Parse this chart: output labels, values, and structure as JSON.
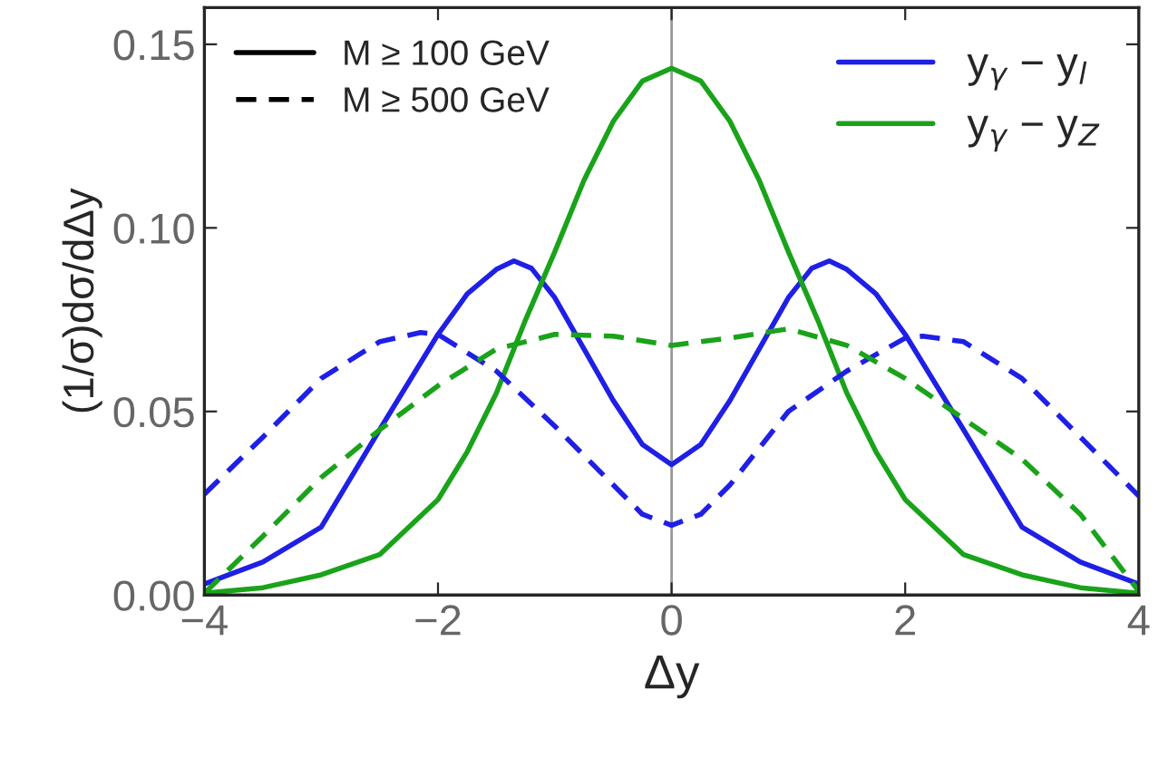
{
  "chart_data": {
    "type": "line",
    "xlabel": "Δy",
    "ylabel": "(1/σ)dσ/dΔy",
    "annotations": [
      "M ≥ 100 GeV",
      "M ≥ 500 GeV"
    ],
    "xlim": [
      -4,
      4
    ],
    "ylim": [
      0,
      0.16
    ],
    "xticks": [
      {
        "value": -4,
        "label": "−4"
      },
      {
        "value": -2,
        "label": "−2"
      },
      0,
      2,
      4
    ],
    "yticks": [
      {
        "value": 0,
        "label": "0.00"
      },
      {
        "value": 0.05,
        "label": "0.05"
      },
      {
        "value": 0.1,
        "label": "0.10"
      },
      {
        "value": 0.15,
        "label": "0.15"
      }
    ],
    "grid": false,
    "legend": "top right",
    "marker": "none",
    "ref_lines": [
      {
        "axis": "x",
        "value": 0,
        "color": "#999999"
      }
    ],
    "series": [
      {
        "name": "y$_{γ}$ − y$_{l}$",
        "color": "#1f1fe6",
        "line_style": "solid",
        "x": [
          -4,
          -3.5,
          -3,
          -2.5,
          -2,
          -1.75,
          -1.5,
          -1.35,
          -1.2,
          -1,
          -0.75,
          -0.5,
          -0.25,
          0,
          0.25,
          0.5,
          0.75,
          1,
          1.2,
          1.35,
          1.5,
          1.75,
          2,
          2.5,
          3,
          3.5,
          4
        ],
        "values": [
          0.003,
          0.009,
          0.0185,
          0.045,
          0.071,
          0.082,
          0.0887,
          0.091,
          0.089,
          0.081,
          0.067,
          0.053,
          0.041,
          0.0355,
          0.041,
          0.053,
          0.067,
          0.081,
          0.089,
          0.091,
          0.0887,
          0.082,
          0.071,
          0.045,
          0.0185,
          0.009,
          0.003
        ]
      },
      {
        "name": "y$_{γ}$ − y$_{Z}$",
        "color": "#1aa31a",
        "line_style": "solid",
        "x": [
          -4,
          -3.5,
          -3,
          -2.5,
          -2,
          -1.75,
          -1.5,
          -1.25,
          -1,
          -0.75,
          -0.5,
          -0.25,
          0,
          0.25,
          0.5,
          0.75,
          1,
          1.25,
          1.5,
          1.75,
          2,
          2.5,
          3,
          3.5,
          4
        ],
        "values": [
          0.0005,
          0.002,
          0.0055,
          0.011,
          0.026,
          0.039,
          0.055,
          0.075,
          0.0935,
          0.113,
          0.129,
          0.14,
          0.1435,
          0.14,
          0.129,
          0.113,
          0.0935,
          0.075,
          0.055,
          0.039,
          0.026,
          0.011,
          0.0055,
          0.002,
          0.0005
        ]
      },
      {
        "color": "#1f1fe6",
        "line_style": "dashed",
        "x": [
          -4,
          -3.5,
          -3,
          -2.5,
          -2.15,
          -2,
          -1.5,
          -1,
          -0.5,
          -0.25,
          0,
          0.25,
          0.5,
          1,
          1.5,
          2,
          2.15,
          2.5,
          3,
          3.5,
          4
        ],
        "values": [
          0.0275,
          0.043,
          0.059,
          0.069,
          0.0715,
          0.071,
          0.061,
          0.046,
          0.03,
          0.022,
          0.019,
          0.022,
          0.03,
          0.05,
          0.061,
          0.07,
          0.0705,
          0.069,
          0.059,
          0.043,
          0.027
        ]
      },
      {
        "color": "#1aa31a",
        "line_style": "dashed",
        "x": [
          -4,
          -3.5,
          -3,
          -2.5,
          -2,
          -1.5,
          -1,
          -0.5,
          0,
          0.5,
          1,
          1.5,
          2,
          2.5,
          3,
          3.5,
          4
        ],
        "values": [
          0.0005,
          0.016,
          0.032,
          0.045,
          0.057,
          0.067,
          0.071,
          0.0705,
          0.068,
          0.07,
          0.0725,
          0.068,
          0.059,
          0.048,
          0.037,
          0.022,
          0.001
        ]
      }
    ]
  }
}
